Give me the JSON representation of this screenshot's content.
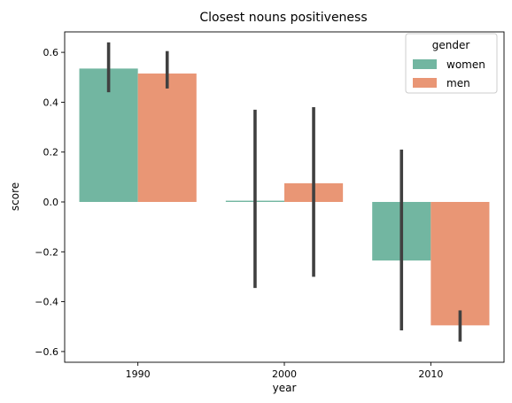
{
  "chart_data": {
    "type": "bar",
    "title": "Closest nouns positiveness",
    "xlabel": "year",
    "ylabel": "score",
    "categories": [
      "1990",
      "2000",
      "2010"
    ],
    "ylim": [
      -0.62,
      0.69
    ],
    "yticks": [
      -0.6,
      -0.4,
      -0.2,
      0.0,
      0.2,
      0.4,
      0.6
    ],
    "ytick_labels": [
      "−0.6",
      "−0.4",
      "−0.2",
      "0.0",
      "0.2",
      "0.4",
      "0.6"
    ],
    "grid": false,
    "legend": {
      "title": "gender",
      "placement": "top-right"
    },
    "series": [
      {
        "name": "women",
        "color": "#72b6a1",
        "values": [
          0.535,
          0.005,
          -0.235
        ],
        "ci_low": [
          0.44,
          -0.345,
          -0.515
        ],
        "ci_high": [
          0.64,
          0.37,
          0.21
        ]
      },
      {
        "name": "men",
        "color": "#e99675",
        "values": [
          0.515,
          0.075,
          -0.495
        ],
        "ci_low": [
          0.455,
          -0.3,
          -0.56
        ],
        "ci_high": [
          0.605,
          0.38,
          -0.435
        ]
      }
    ]
  }
}
